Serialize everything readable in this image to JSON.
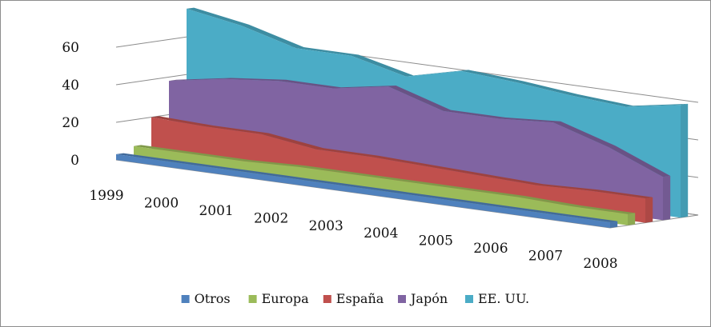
{
  "chart_data": {
    "type": "area",
    "subtype": "3d-area",
    "categories": [
      "1999",
      "2000",
      "2001",
      "2002",
      "2003",
      "2004",
      "2005",
      "2006",
      "2007",
      "2008"
    ],
    "series": [
      {
        "name": "Otros",
        "color": "#4f81bd",
        "values": [
          3,
          3,
          3,
          3,
          3,
          3,
          3,
          3,
          3,
          3
        ]
      },
      {
        "name": "Europa",
        "color": "#9bbb59",
        "values": [
          6,
          6,
          6,
          7,
          7,
          7,
          7,
          7,
          6,
          6
        ]
      },
      {
        "name": "España",
        "color": "#c0504d",
        "values": [
          20,
          19,
          19,
          15,
          15,
          14,
          13,
          12,
          13,
          13
        ]
      },
      {
        "name": "Japón",
        "color": "#8064a2",
        "values": [
          38,
          43,
          46,
          46,
          51,
          42,
          42,
          44,
          35,
          23
        ]
      },
      {
        "name": "EE. UU.",
        "color": "#4bacc6",
        "values": [
          75,
          70,
          62,
          62,
          55,
          62,
          60,
          57,
          55,
          60
        ]
      }
    ],
    "ylim": [
      0,
      60
    ],
    "yticks": [
      "0",
      "20",
      "40",
      "60"
    ],
    "grid": true,
    "legend_position": "bottom"
  }
}
